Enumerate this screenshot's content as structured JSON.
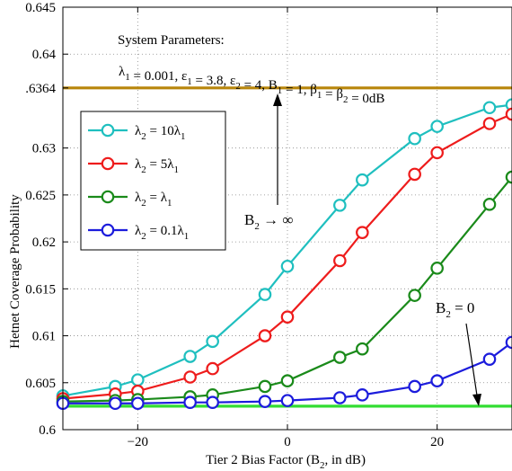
{
  "chart_data": {
    "type": "line",
    "xlabel": "Tier 2 Bias Factor (B",
    "xlabel_sub": "2",
    "xlabel_tail": ", in dB)",
    "ylabel": "Hetnet Coverage Probability",
    "xlim": [
      -30,
      30
    ],
    "ylim": [
      0.6,
      0.645
    ],
    "xticks": [
      -20,
      0,
      20
    ],
    "xtick_labels": [
      "−20",
      "0",
      "20"
    ],
    "yticks": [
      0.6,
      0.605,
      0.61,
      0.615,
      0.62,
      0.625,
      0.63,
      0.6364,
      0.64,
      0.645
    ],
    "ytick_labels": [
      "0.6",
      "0.605",
      "0.61",
      "0.615",
      "0.62",
      "0.625",
      "0.63",
      ".6364",
      "0.64",
      "0.645"
    ],
    "grid": true,
    "legend_position": "top-left",
    "series": [
      {
        "name": "λ2 = 10λ1",
        "legend_main": "λ",
        "legend_sub": "2",
        "legend_mid": " = 10λ",
        "legend_sub2": "1",
        "color": "#1fbfbf",
        "x": [
          -30,
          -23,
          -20,
          -13,
          -10,
          -3,
          0,
          7,
          10,
          17,
          20,
          27,
          30
        ],
        "y": [
          0.6036,
          0.6046,
          0.6053,
          0.6078,
          0.6094,
          0.6144,
          0.6174,
          0.6239,
          0.6266,
          0.631,
          0.6323,
          0.6343,
          0.6346
        ]
      },
      {
        "name": "λ2 = 5λ1",
        "legend_main": "λ",
        "legend_sub": "2",
        "legend_mid": " = 5λ",
        "legend_sub2": "1",
        "color": "#ee1c1c",
        "x": [
          -30,
          -23,
          -20,
          -13,
          -10,
          -3,
          0,
          7,
          10,
          17,
          20,
          27,
          30
        ],
        "y": [
          0.6033,
          0.6038,
          0.6041,
          0.6056,
          0.6065,
          0.61,
          0.612,
          0.618,
          0.621,
          0.6272,
          0.6295,
          0.6326,
          0.6336
        ]
      },
      {
        "name": "λ2 = λ1",
        "legend_main": "λ",
        "legend_sub": "2",
        "legend_mid": " = λ",
        "legend_sub2": "1",
        "color": "#1a8a1a",
        "x": [
          -30,
          -23,
          -20,
          -13,
          -10,
          -3,
          0,
          7,
          10,
          17,
          20,
          27,
          30
        ],
        "y": [
          0.603,
          0.6031,
          0.6032,
          0.6035,
          0.6037,
          0.6046,
          0.6052,
          0.6077,
          0.6086,
          0.6143,
          0.6172,
          0.624,
          0.6269
        ]
      },
      {
        "name": "λ2 = 0.1λ1",
        "legend_main": "λ",
        "legend_sub": "2",
        "legend_mid": " = 0.1λ",
        "legend_sub2": "1",
        "color": "#1c1cdc",
        "x": [
          -30,
          -23,
          -20,
          -13,
          -10,
          -3,
          0,
          7,
          10,
          17,
          20,
          27,
          30
        ],
        "y": [
          0.6028,
          0.6028,
          0.6028,
          0.6029,
          0.6029,
          0.603,
          0.6031,
          0.6034,
          0.6037,
          0.6046,
          0.6052,
          0.6075,
          0.6093
        ]
      }
    ],
    "reference_lines": [
      {
        "label": "B2 → ∞",
        "y": 0.6364,
        "color": "#b8860b"
      },
      {
        "label": "B2 = 0",
        "y": 0.6025,
        "color": "#33dd33"
      }
    ]
  },
  "annotations": {
    "params_title": "System Parameters:",
    "params_line": [
      {
        "t": "λ",
        "sub": "1"
      },
      {
        "t": " = 0.001, ε",
        "sub": "1"
      },
      {
        "t": " = 3.8, ε",
        "sub": "2"
      },
      {
        "t": " = 4, B",
        "sub": "1"
      },
      {
        "t": " = 1, β",
        "sub": "1"
      },
      {
        "t": " = β",
        "sub": "2"
      },
      {
        "t": " = 0dB",
        "sub": ""
      }
    ],
    "binf_main": "B",
    "binf_sub": "2",
    "binf_tail": " → ∞",
    "bzero_main": "B",
    "bzero_sub": "2",
    "bzero_tail": " = 0"
  }
}
